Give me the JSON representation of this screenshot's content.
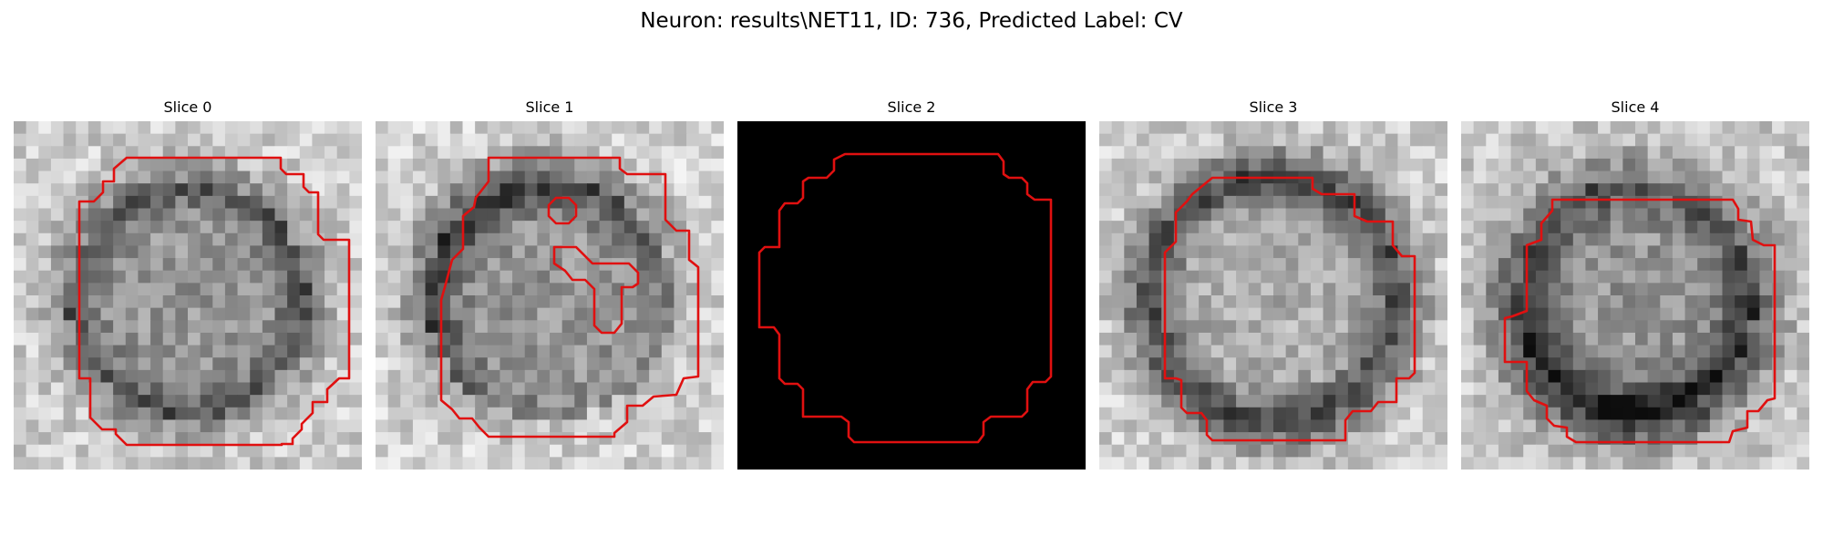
{
  "figure": {
    "title": "Neuron: results\\NET11, ID: 736, Predicted Label: CV"
  },
  "contour_color": "#e01010",
  "panels": [
    {
      "title": "Slice 0",
      "kind": "micrograph",
      "ring": "medium",
      "seed": 11
    },
    {
      "title": "Slice 1",
      "kind": "micrograph",
      "ring": "partial-dark",
      "seed": 29
    },
    {
      "title": "Slice 2",
      "kind": "blank",
      "ring": "none",
      "seed": 47
    },
    {
      "title": "Slice 3",
      "kind": "micrograph",
      "ring": "strong",
      "seed": 63
    },
    {
      "title": "Slice 4",
      "kind": "micrograph",
      "ring": "strong-dark",
      "seed": 81
    }
  ]
}
